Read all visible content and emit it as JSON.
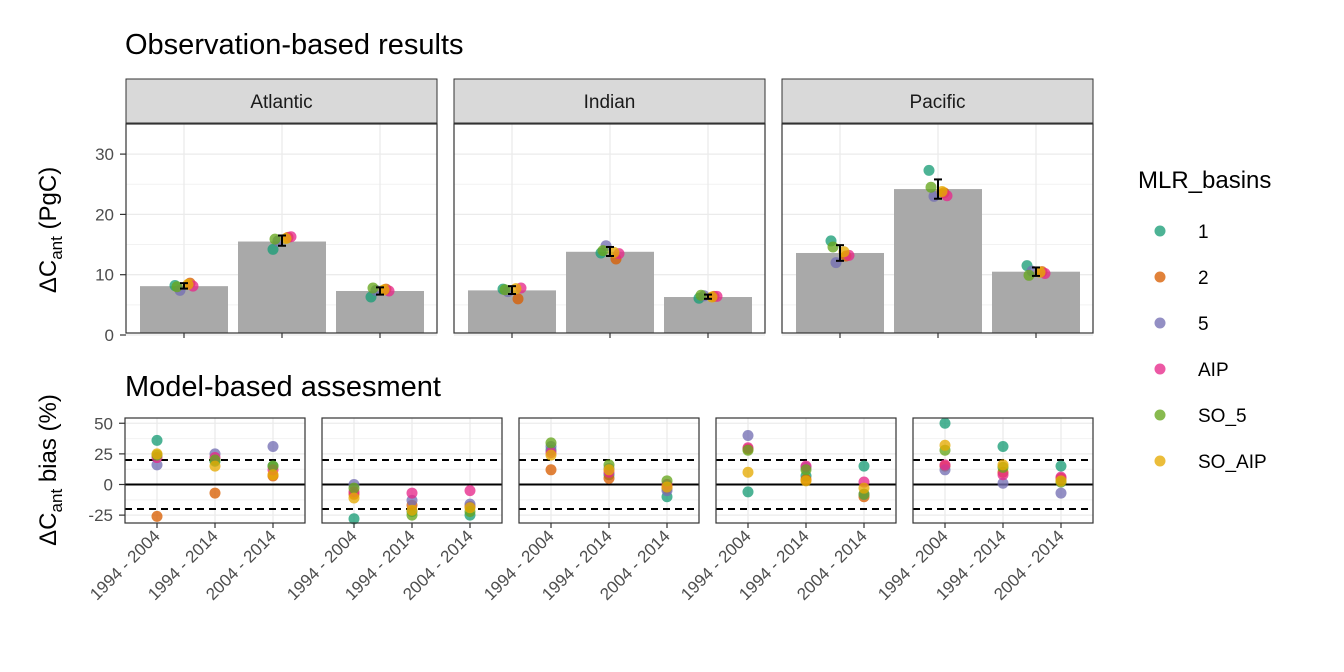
{
  "titles": {
    "top": "Observation-based results",
    "bottom": "Model-based assesment"
  },
  "axes": {
    "top_ylabel_prefix": "ΔC",
    "top_ylabel_sub": "ant",
    "top_ylabel_suffix": " (PgC)",
    "bottom_ylabel_prefix": "ΔC",
    "bottom_ylabel_sub": "ant",
    "bottom_ylabel_suffix": " bias (%)"
  },
  "legend": {
    "title": "MLR_basins",
    "items": [
      {
        "label": "1",
        "color": "#1B9E77"
      },
      {
        "label": "2",
        "color": "#D95F02"
      },
      {
        "label": "5",
        "color": "#7570B3"
      },
      {
        "label": "AIP",
        "color": "#E7298A"
      },
      {
        "label": "SO_5",
        "color": "#66A61E"
      },
      {
        "label": "SO_AIP",
        "color": "#E6AB02"
      }
    ]
  },
  "chart_data": [
    {
      "type": "bar",
      "title": "Observation-based results",
      "ylabel": "ΔCant (PgC)",
      "ylim": [
        0,
        35
      ],
      "yticks": [
        0,
        10,
        20,
        30
      ],
      "categories": [
        "1994 - 2004",
        "1994 - 2014",
        "2004 - 2014"
      ],
      "panels": [
        {
          "name": "Atlantic",
          "bars": [
            8.1,
            15.5,
            7.3
          ],
          "errors": [
            [
              7.7,
              8.6
            ],
            [
              14.8,
              16.5
            ],
            [
              6.7,
              7.9
            ]
          ],
          "points": [
            {
              "category": 0,
              "series": [
                "1",
                "2",
                "5",
                "AIP",
                "SO_5",
                "SO_AIP"
              ],
              "values": [
                8.2,
                8.6,
                7.4,
                8.1,
                8.0,
                8.4
              ]
            },
            {
              "category": 1,
              "series": [
                "1",
                "2",
                "5",
                "AIP",
                "SO_5",
                "SO_AIP"
              ],
              "values": [
                14.2,
                16.2,
                15.6,
                16.3,
                15.9,
                16.0
              ]
            },
            {
              "category": 2,
              "series": [
                "1",
                "2",
                "5",
                "AIP",
                "SO_5",
                "SO_AIP"
              ],
              "values": [
                6.3,
                7.6,
                7.4,
                7.3,
                7.8,
                7.5
              ]
            }
          ]
        },
        {
          "name": "Indian",
          "bars": [
            7.4,
            13.8,
            6.3
          ],
          "errors": [
            [
              6.8,
              8.1
            ],
            [
              13.1,
              14.6
            ],
            [
              6.0,
              6.7
            ]
          ],
          "points": [
            {
              "category": 0,
              "series": [
                "1",
                "2",
                "5",
                "AIP",
                "SO_5",
                "SO_AIP"
              ],
              "values": [
                7.6,
                6.0,
                7.2,
                7.8,
                7.5,
                7.7
              ]
            },
            {
              "category": 1,
              "series": [
                "1",
                "2",
                "5",
                "AIP",
                "SO_5",
                "SO_AIP"
              ],
              "values": [
                13.6,
                12.6,
                14.8,
                13.5,
                14.0,
                13.7
              ]
            },
            {
              "category": 2,
              "series": [
                "1",
                "2",
                "5",
                "AIP",
                "SO_5",
                "SO_AIP"
              ],
              "values": [
                6.1,
                6.4,
                6.5,
                6.4,
                6.6,
                6.3
              ]
            }
          ]
        },
        {
          "name": "Pacific",
          "bars": [
            13.6,
            24.2,
            10.5
          ],
          "errors": [
            [
              12.3,
              14.9
            ],
            [
              22.6,
              25.8
            ],
            [
              9.8,
              11.2
            ]
          ],
          "points": [
            {
              "category": 0,
              "series": [
                "1",
                "2",
                "5",
                "AIP",
                "SO_5",
                "SO_AIP"
              ],
              "values": [
                15.6,
                13.1,
                12.0,
                13.2,
                14.6,
                13.8
              ]
            },
            {
              "category": 1,
              "series": [
                "1",
                "2",
                "5",
                "AIP",
                "SO_5",
                "SO_AIP"
              ],
              "values": [
                27.3,
                23.6,
                23.0,
                23.1,
                24.5,
                23.8
              ]
            },
            {
              "category": 2,
              "series": [
                "1",
                "2",
                "5",
                "AIP",
                "SO_5",
                "SO_AIP"
              ],
              "values": [
                11.5,
                10.5,
                10.6,
                10.2,
                9.9,
                10.4
              ]
            }
          ]
        }
      ]
    },
    {
      "type": "scatter",
      "title": "Model-based assesment",
      "ylabel": "ΔCant bias (%)",
      "ylim": [
        -31,
        54
      ],
      "yticks": [
        -25,
        0,
        25,
        50
      ],
      "reference_lines": {
        "solid": [
          0
        ],
        "dashed": [
          20,
          -20
        ]
      },
      "categories": [
        "1994 - 2004",
        "1994 - 2014",
        "2004 - 2014"
      ],
      "panels": [
        {
          "points": [
            {
              "category": 0,
              "series": [
                "1",
                "2",
                "5",
                "AIP",
                "SO_5",
                "SO_AIP"
              ],
              "values": [
                36,
                -26,
                16,
                22,
                24,
                25
              ]
            },
            {
              "category": 1,
              "series": [
                "1",
                "2",
                "5",
                "AIP",
                "SO_5",
                "SO_AIP"
              ],
              "values": [
                19,
                -7,
                25,
                22,
                20,
                15
              ]
            },
            {
              "category": 2,
              "series": [
                "1",
                "2",
                "5",
                "AIP",
                "SO_5",
                "SO_AIP"
              ],
              "values": [
                15,
                7,
                31,
                12,
                15,
                8
              ]
            }
          ]
        },
        {
          "points": [
            {
              "category": 0,
              "series": [
                "1",
                "2",
                "5",
                "AIP",
                "SO_5",
                "SO_AIP"
              ],
              "values": [
                -28,
                -8,
                0,
                -6,
                -3,
                -11
              ]
            },
            {
              "category": 1,
              "series": [
                "1",
                "2",
                "5",
                "AIP",
                "SO_5",
                "SO_AIP"
              ],
              "values": [
                -22,
                -17,
                -13,
                -7,
                -25,
                -21
              ]
            },
            {
              "category": 2,
              "series": [
                "1",
                "2",
                "5",
                "AIP",
                "SO_5",
                "SO_AIP"
              ],
              "values": [
                -25,
                -18,
                -16,
                -5,
                -22,
                -19
              ]
            }
          ]
        },
        {
          "points": [
            {
              "category": 0,
              "series": [
                "1",
                "2",
                "5",
                "AIP",
                "SO_5",
                "SO_AIP"
              ],
              "values": [
                28,
                12,
                31,
                26,
                34,
                24
              ]
            },
            {
              "category": 1,
              "series": [
                "1",
                "2",
                "5",
                "AIP",
                "SO_5",
                "SO_AIP"
              ],
              "values": [
                8,
                5,
                13,
                10,
                16,
                12
              ]
            },
            {
              "category": 2,
              "series": [
                "1",
                "2",
                "5",
                "AIP",
                "SO_5",
                "SO_AIP"
              ],
              "values": [
                -10,
                -3,
                -5,
                0,
                3,
                -2
              ]
            }
          ]
        },
        {
          "points": [
            {
              "category": 0,
              "series": [
                "1",
                "2",
                "5",
                "AIP",
                "SO_5",
                "SO_AIP"
              ],
              "values": [
                -6,
                29,
                40,
                30,
                28,
                10
              ]
            },
            {
              "category": 1,
              "series": [
                "1",
                "2",
                "5",
                "AIP",
                "SO_5",
                "SO_AIP"
              ],
              "values": [
                7,
                4,
                14,
                15,
                12,
                3
              ]
            },
            {
              "category": 2,
              "series": [
                "1",
                "2",
                "5",
                "AIP",
                "SO_5",
                "SO_AIP"
              ],
              "values": [
                15,
                -10,
                -8,
                2,
                -8,
                -3
              ]
            }
          ]
        },
        {
          "points": [
            {
              "category": 0,
              "series": [
                "1",
                "2",
                "5",
                "AIP",
                "SO_5",
                "SO_AIP"
              ],
              "values": [
                50,
                15,
                12,
                16,
                28,
                32
              ]
            },
            {
              "category": 1,
              "series": [
                "1",
                "2",
                "5",
                "AIP",
                "SO_5",
                "SO_AIP"
              ],
              "values": [
                31,
                10,
                1,
                8,
                14,
                16
              ]
            },
            {
              "category": 2,
              "series": [
                "1",
                "2",
                "5",
                "AIP",
                "SO_5",
                "SO_AIP"
              ],
              "values": [
                15,
                5,
                -7,
                6,
                2,
                3
              ]
            }
          ]
        }
      ]
    }
  ]
}
